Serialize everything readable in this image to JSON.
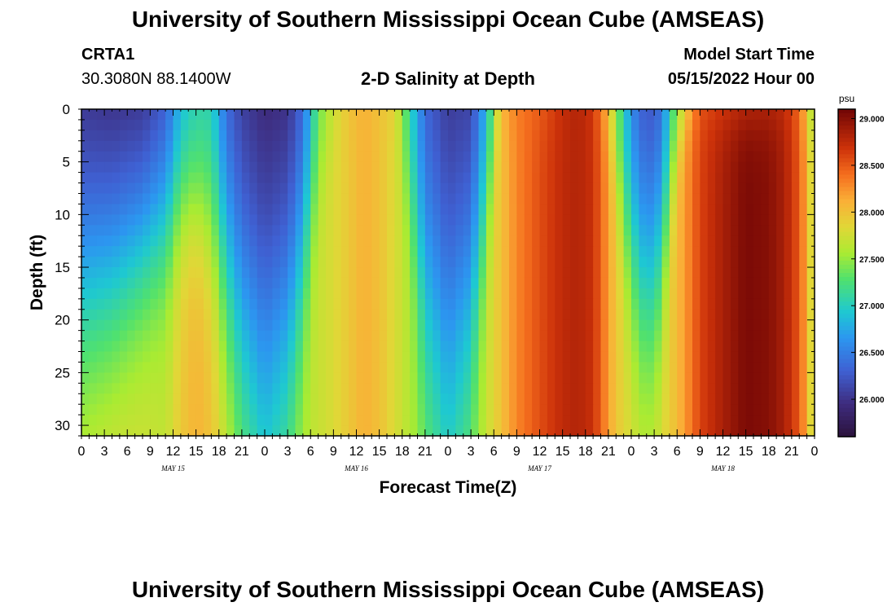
{
  "header": {
    "title": "University of Southern Mississippi Ocean Cube (AMSEAS)",
    "station_id": "CRTA1",
    "station_coords": "30.3080N  88.1400W",
    "subtitle": "2-D Salinity at Depth",
    "model_start_label": "Model Start Time",
    "model_start_value": "05/15/2022 Hour 00"
  },
  "footer": {
    "title": "University of Southern Mississippi Ocean Cube (AMSEAS)"
  },
  "chart_data": {
    "type": "heatmap",
    "title": "2-D Salinity at Depth",
    "xlabel": "Forecast Time(Z)",
    "ylabel": "Depth (ft)",
    "x_range_hours": [
      0,
      96
    ],
    "x_tick_labels": [
      "0",
      "3",
      "6",
      "9",
      "12",
      "15",
      "18",
      "21",
      "0",
      "3",
      "6",
      "9",
      "12",
      "15",
      "18",
      "21",
      "0",
      "3",
      "6",
      "9",
      "12",
      "15",
      "18",
      "21",
      "0",
      "3",
      "6",
      "9",
      "12",
      "15",
      "18",
      "21",
      "0"
    ],
    "day_labels": [
      {
        "label": "MAY 15",
        "hour": 12
      },
      {
        "label": "MAY 16",
        "hour": 36
      },
      {
        "label": "MAY 17",
        "hour": 60
      },
      {
        "label": "MAY 18",
        "hour": 84
      }
    ],
    "y_range_ft": [
      0,
      31
    ],
    "y_ticks": [
      0,
      5,
      10,
      15,
      20,
      25,
      30
    ],
    "colorbar": {
      "unit": "psu",
      "min": 25.6,
      "max": 29.1,
      "tick_labels": [
        "29.000",
        "28.500",
        "28.000",
        "27.500",
        "27.000",
        "26.500",
        "26.000"
      ],
      "tick_values": [
        29.0,
        28.5,
        28.0,
        27.5,
        27.0,
        26.5,
        26.0
      ]
    },
    "columns": [
      {
        "hour": 0,
        "surface": 25.8,
        "bottom": 27.85,
        "tcline": 16
      },
      {
        "hour": 4,
        "surface": 25.75,
        "bottom": 27.9,
        "tcline": 15
      },
      {
        "hour": 8,
        "surface": 25.8,
        "bottom": 27.8,
        "tcline": 12
      },
      {
        "hour": 11,
        "surface": 26.1,
        "bottom": 27.7,
        "tcline": 10
      },
      {
        "hour": 13,
        "surface": 26.7,
        "bottom": 27.95,
        "tcline": 8
      },
      {
        "hour": 15,
        "surface": 26.9,
        "bottom": 28.1,
        "tcline": 8
      },
      {
        "hour": 17,
        "surface": 26.9,
        "bottom": 28.0,
        "tcline": 10
      },
      {
        "hour": 19,
        "surface": 26.2,
        "bottom": 27.75,
        "tcline": 14
      },
      {
        "hour": 21,
        "surface": 25.9,
        "bottom": 27.55,
        "tcline": 18
      },
      {
        "hour": 24,
        "surface": 25.75,
        "bottom": 27.35,
        "tcline": 21
      },
      {
        "hour": 27,
        "surface": 25.8,
        "bottom": 27.45,
        "tcline": 18
      },
      {
        "hour": 29,
        "surface": 26.2,
        "bottom": 27.6,
        "tcline": 13
      },
      {
        "hour": 31,
        "surface": 27.3,
        "bottom": 27.7,
        "tcline": 6
      },
      {
        "hour": 33,
        "surface": 27.7,
        "bottom": 27.8,
        "tcline": 2
      },
      {
        "hour": 35,
        "surface": 28.0,
        "bottom": 27.95,
        "tcline": 1
      },
      {
        "hour": 37,
        "surface": 28.1,
        "bottom": 28.1,
        "tcline": 1
      },
      {
        "hour": 39,
        "surface": 28.0,
        "bottom": 28.0,
        "tcline": 1
      },
      {
        "hour": 41,
        "surface": 27.9,
        "bottom": 27.8,
        "tcline": 2
      },
      {
        "hour": 43,
        "surface": 27.0,
        "bottom": 27.6,
        "tcline": 8
      },
      {
        "hour": 45,
        "surface": 26.2,
        "bottom": 27.45,
        "tcline": 16
      },
      {
        "hour": 48,
        "surface": 25.9,
        "bottom": 27.3,
        "tcline": 20
      },
      {
        "hour": 51,
        "surface": 25.95,
        "bottom": 27.45,
        "tcline": 16
      },
      {
        "hour": 53,
        "surface": 26.7,
        "bottom": 27.7,
        "tcline": 9
      },
      {
        "hour": 55,
        "surface": 28.1,
        "bottom": 28.0,
        "tcline": 1
      },
      {
        "hour": 57,
        "surface": 28.35,
        "bottom": 28.3,
        "tcline": 1
      },
      {
        "hour": 60,
        "surface": 28.45,
        "bottom": 28.55,
        "tcline": 1
      },
      {
        "hour": 63,
        "surface": 28.7,
        "bottom": 28.75,
        "tcline": 1
      },
      {
        "hour": 65,
        "surface": 28.8,
        "bottom": 28.8,
        "tcline": 1
      },
      {
        "hour": 67,
        "surface": 28.65,
        "bottom": 28.7,
        "tcline": 1
      },
      {
        "hour": 69,
        "surface": 28.0,
        "bottom": 28.2,
        "tcline": 2
      },
      {
        "hour": 70,
        "surface": 27.4,
        "bottom": 27.95,
        "tcline": 6
      },
      {
        "hour": 72,
        "surface": 26.4,
        "bottom": 27.8,
        "tcline": 12
      },
      {
        "hour": 74,
        "surface": 26.0,
        "bottom": 27.8,
        "tcline": 16
      },
      {
        "hour": 76,
        "surface": 26.2,
        "bottom": 27.85,
        "tcline": 13
      },
      {
        "hour": 77,
        "surface": 26.9,
        "bottom": 27.9,
        "tcline": 7
      },
      {
        "hour": 79,
        "surface": 27.8,
        "bottom": 28.2,
        "tcline": 1
      },
      {
        "hour": 81,
        "surface": 28.5,
        "bottom": 28.6,
        "tcline": 1
      },
      {
        "hour": 84,
        "surface": 28.6,
        "bottom": 28.85,
        "tcline": 1
      },
      {
        "hour": 87,
        "surface": 28.7,
        "bottom": 29.05,
        "tcline": 1
      },
      {
        "hour": 90,
        "surface": 28.75,
        "bottom": 29.0,
        "tcline": 1
      },
      {
        "hour": 92,
        "surface": 28.7,
        "bottom": 28.85,
        "tcline": 1
      },
      {
        "hour": 94,
        "surface": 28.4,
        "bottom": 28.5,
        "tcline": 1
      },
      {
        "hour": 95,
        "surface": 27.9,
        "bottom": 28.1,
        "tcline": 1
      },
      {
        "hour": 96,
        "surface": 27.3,
        "bottom": 27.6,
        "tcline": 1
      }
    ]
  }
}
